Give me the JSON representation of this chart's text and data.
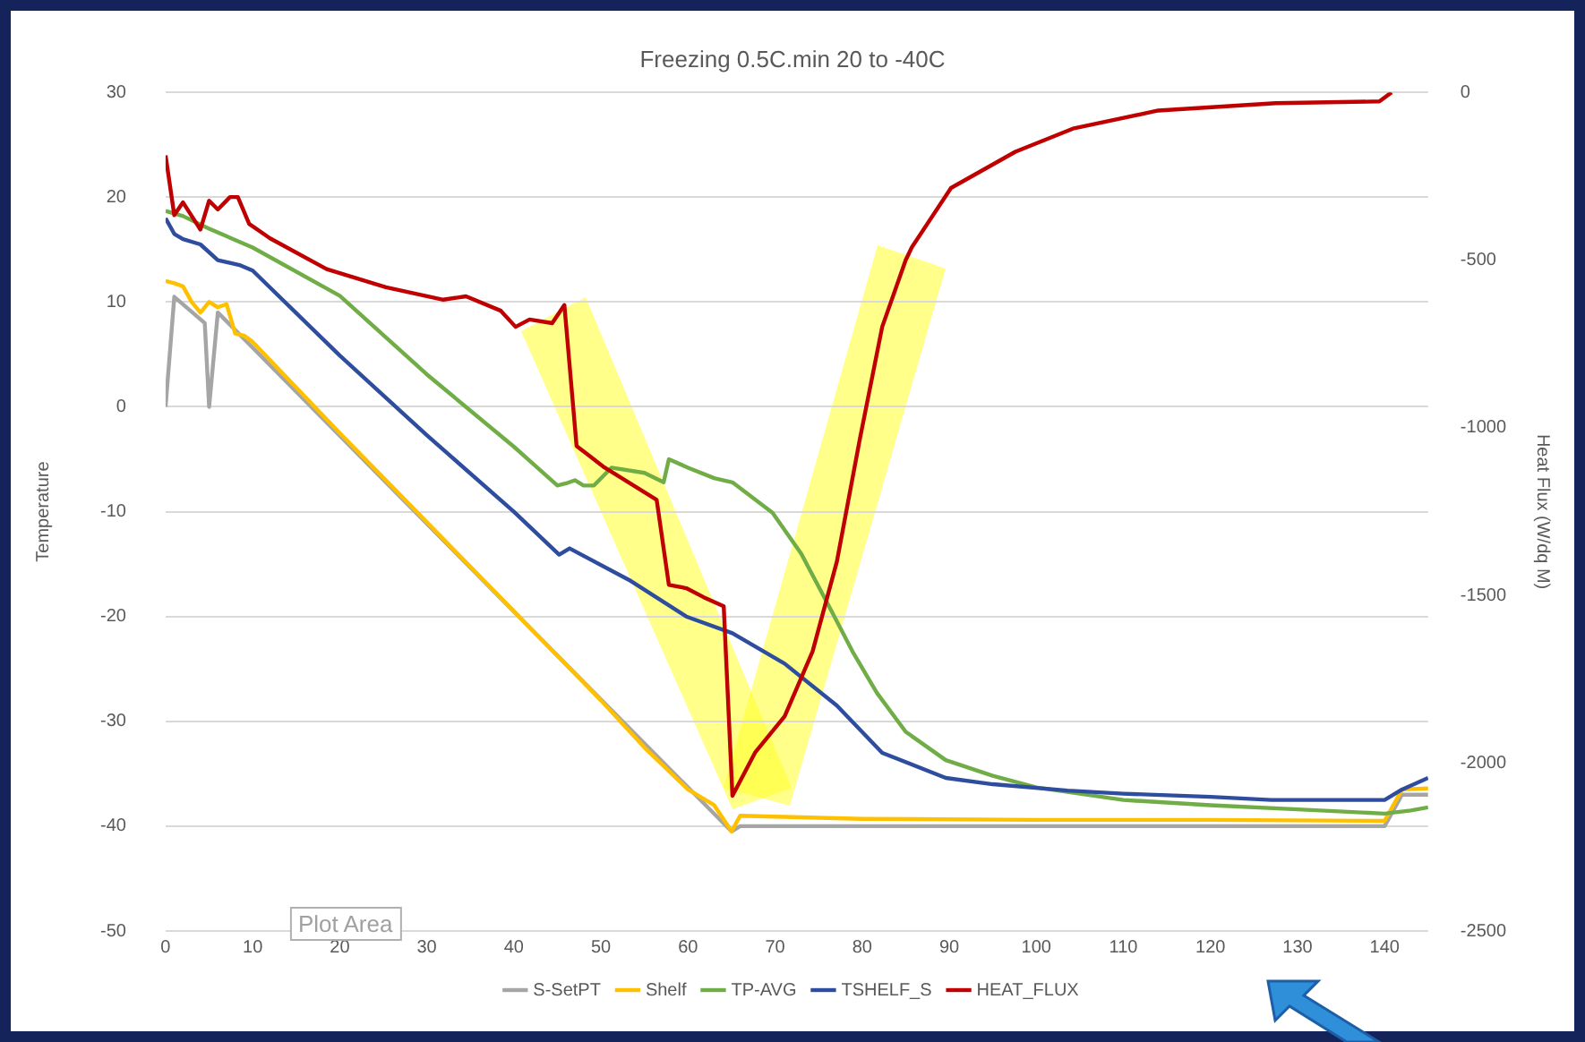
{
  "chart_data": {
    "type": "line",
    "title": "Freezing 0.5C.min 20 to -40C",
    "ylabel": "Temperature",
    "y2label": "Heat Flux (W/dq M)",
    "xlim": [
      0,
      145
    ],
    "xticks": [
      0,
      10,
      20,
      30,
      40,
      50,
      60,
      70,
      80,
      90,
      100,
      110,
      120,
      130,
      140
    ],
    "ylim": [
      -50,
      30
    ],
    "yticks": [
      -50,
      -40,
      -30,
      -20,
      -10,
      0,
      10,
      20,
      30
    ],
    "y2lim": [
      -2500,
      0
    ],
    "y2ticks": [
      -2500,
      -2000,
      -1500,
      -1000,
      -500,
      0
    ],
    "grid": "y",
    "legend": "bottom",
    "marker": "none",
    "line_style": "solid",
    "annotations": [
      "Plot Area"
    ],
    "series": [
      {
        "name": "S-SetPT",
        "color": "#a5a5a5",
        "x": [
          0,
          1,
          4.5,
          5,
          6,
          65,
          66,
          140,
          142,
          145
        ],
        "values": [
          0,
          10.5,
          8,
          0,
          9,
          -40.5,
          -40,
          -40,
          -37,
          -37
        ]
      },
      {
        "name": "Shelf",
        "color": "#ffc000",
        "x": [
          0,
          1,
          2,
          3,
          4,
          5,
          6,
          7,
          8,
          9,
          10,
          20,
          30,
          40,
          50,
          55,
          60,
          63,
          65,
          66,
          80,
          100,
          120,
          140,
          142,
          145
        ],
        "values": [
          12,
          11.8,
          11.5,
          10,
          9,
          10,
          9.5,
          9.8,
          7,
          6.8,
          6.2,
          -2.5,
          -11,
          -19.5,
          -28,
          -32.5,
          -36.5,
          -38,
          -40.5,
          -39,
          -39.3,
          -39.4,
          -39.4,
          -39.5,
          -36.5,
          -36.4
        ]
      },
      {
        "name": "TP-AVG",
        "color": "#70ad47",
        "x": [
          0,
          2,
          5,
          10,
          20,
          30,
          40,
          45,
          46,
          47,
          48,
          49.2,
          51.2,
          55,
          57.2,
          57.8,
          60,
          63,
          65.1,
          69.7,
          73,
          76.3,
          79,
          81.7,
          85,
          89.6,
          95,
          100,
          110,
          120,
          130,
          140,
          143,
          145
        ],
        "values": [
          18.7,
          18.2,
          17,
          15.2,
          10.6,
          3.1,
          -3.8,
          -7.5,
          -7.3,
          -7,
          -7.5,
          -7.5,
          -5.8,
          -6.3,
          -7.2,
          -5,
          -5.8,
          -6.8,
          -7.2,
          -10.1,
          -14,
          -19.2,
          -23.5,
          -27.3,
          -31,
          -33.7,
          -35.2,
          -36.3,
          -37.5,
          -38,
          -38.4,
          -38.8,
          -38.5,
          -38.2
        ]
      },
      {
        "name": "TSHELF_S",
        "color": "#2e4d9e",
        "x": [
          0,
          1,
          2,
          4,
          6,
          8.6,
          10,
          20,
          30,
          40,
          45.2,
          46.4,
          53.2,
          59.8,
          65.1,
          71.1,
          77.1,
          82.3,
          89.6,
          95,
          103.6,
          110,
          120,
          127,
          135,
          140,
          142,
          145
        ],
        "values": [
          18,
          16.5,
          16,
          15.5,
          14,
          13.5,
          13,
          4.9,
          -2.7,
          -10,
          -14.1,
          -13.5,
          -16.5,
          -20,
          -21.6,
          -24.5,
          -28.5,
          -33,
          -35.4,
          -36,
          -36.6,
          -36.9,
          -37.2,
          -37.5,
          -37.5,
          -37.5,
          -36.5,
          -35.4
        ]
      },
      {
        "name": "HEAT_FLUX",
        "color": "#c00000",
        "axis": "y2",
        "x": [
          0,
          1,
          2,
          4,
          5,
          6,
          7.4,
          8.3,
          9.6,
          12,
          18.5,
          25.3,
          31.9,
          34.5,
          38.5,
          40.2,
          41.8,
          44.4,
          45.8,
          47.2,
          50.4,
          56.4,
          57.8,
          59.8,
          61.8,
          64.1,
          65.1,
          67.7,
          71.1,
          74.3,
          77.1,
          79.7,
          82.3,
          85,
          85.7,
          90.2,
          97.6,
          104.2,
          114,
          127.5,
          139.4,
          140.8
        ],
        "values": [
          -188,
          -366,
          -328,
          -409,
          -323,
          -349,
          -312,
          -312,
          -392,
          -435,
          -527,
          -581,
          -618,
          -608,
          -651,
          -699,
          -677,
          -688,
          -634,
          -1054,
          -1118,
          -1215,
          -1468,
          -1478,
          -1505,
          -1532,
          -2097,
          -1968,
          -1860,
          -1667,
          -1398,
          -1038,
          -699,
          -500,
          -462,
          -285,
          -177,
          -108,
          -54,
          -32,
          -27,
          0
        ]
      }
    ]
  }
}
